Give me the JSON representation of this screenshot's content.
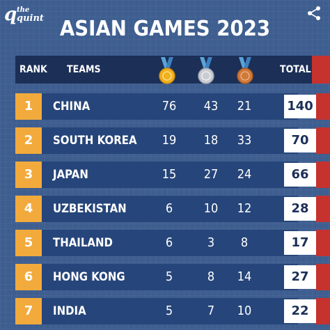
{
  "brand": {
    "logo_line1": "the",
    "logo_line2": "quint",
    "logo_letter": "q"
  },
  "title": "ASIAN GAMES 2023",
  "columns": {
    "rank": "RANK",
    "teams": "TEAMS",
    "total": "TOTAL"
  },
  "medal_colors": {
    "gold": "#f2b01e",
    "silver": "#c9ccd3",
    "bronze": "#d07a3a",
    "ribbon": "#5aa3d9"
  },
  "rows": [
    {
      "rank": "1",
      "team": "CHINA",
      "gold": "76",
      "silver": "43",
      "bronze": "21",
      "total": "140"
    },
    {
      "rank": "2",
      "team": "SOUTH KOREA",
      "gold": "19",
      "silver": "18",
      "bronze": "33",
      "total": "70"
    },
    {
      "rank": "3",
      "team": "JAPAN",
      "gold": "15",
      "silver": "27",
      "bronze": "24",
      "total": "66"
    },
    {
      "rank": "4",
      "team": "UZBEKISTAN",
      "gold": "6",
      "silver": "10",
      "bronze": "12",
      "total": "28"
    },
    {
      "rank": "5",
      "team": "THAILAND",
      "gold": "6",
      "silver": "3",
      "bronze": "8",
      "total": "17"
    },
    {
      "rank": "6",
      "team": "HONG KONG",
      "gold": "5",
      "silver": "8",
      "bronze": "14",
      "total": "27"
    },
    {
      "rank": "7",
      "team": "INDIA",
      "gold": "5",
      "silver": "7",
      "bronze": "10",
      "total": "22"
    }
  ]
}
